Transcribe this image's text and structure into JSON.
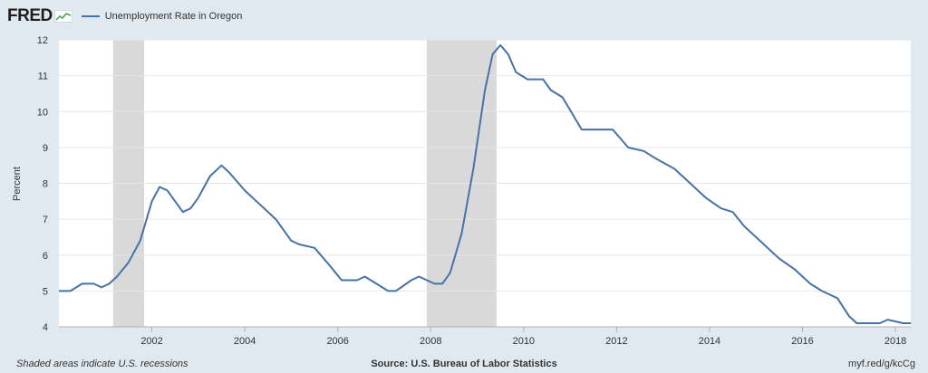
{
  "header": {
    "brand": "FRED",
    "brand_icon": "fred-sparkline-icon",
    "series_label": "Unemployment Rate in Oregon"
  },
  "footer": {
    "note": "Shaded areas indicate U.S. recessions",
    "source": "Source: U.S. Bureau of Labor Statistics",
    "link": "myf.red/g/kcCg"
  },
  "colors": {
    "line": "#4572a7",
    "recession": "#d9d9d9",
    "background": "#e1e9f0",
    "plot_background": "#ffffff",
    "grid": "#e6e6e6"
  },
  "chart_data": {
    "type": "line",
    "title": "",
    "xlabel": "",
    "ylabel": "Percent",
    "xlim": [
      2000.0,
      2018.33
    ],
    "ylim": [
      4,
      12
    ],
    "grid": true,
    "legend_position": "top-left",
    "x_ticks": [
      "2002",
      "2004",
      "2006",
      "2008",
      "2010",
      "2012",
      "2014",
      "2016",
      "2018"
    ],
    "y_ticks": [
      "4",
      "5",
      "6",
      "7",
      "8",
      "9",
      "10",
      "11",
      "12"
    ],
    "recessions": [
      {
        "start": "2001-03",
        "end": "2001-11"
      },
      {
        "start": "2007-12",
        "end": "2009-06"
      }
    ],
    "series": [
      {
        "points": [
          [
            "2000-01",
            5.0
          ],
          [
            "2000-04",
            5.0
          ],
          [
            "2000-07",
            5.2
          ],
          [
            "2000-10",
            5.2
          ],
          [
            "2000-12",
            5.1
          ],
          [
            "2001-02",
            5.2
          ],
          [
            "2001-04",
            5.4
          ],
          [
            "2001-07",
            5.8
          ],
          [
            "2001-10",
            6.4
          ],
          [
            "2002-01",
            7.5
          ],
          [
            "2002-03",
            7.9
          ],
          [
            "2002-05",
            7.8
          ],
          [
            "2002-07",
            7.5
          ],
          [
            "2002-09",
            7.2
          ],
          [
            "2002-11",
            7.3
          ],
          [
            "2003-01",
            7.6
          ],
          [
            "2003-04",
            8.2
          ],
          [
            "2003-07",
            8.5
          ],
          [
            "2003-09",
            8.3
          ],
          [
            "2004-01",
            7.8
          ],
          [
            "2004-06",
            7.3
          ],
          [
            "2004-09",
            7.0
          ],
          [
            "2005-01",
            6.4
          ],
          [
            "2005-03",
            6.3
          ],
          [
            "2005-07",
            6.2
          ],
          [
            "2005-11",
            5.7
          ],
          [
            "2006-02",
            5.3
          ],
          [
            "2006-06",
            5.3
          ],
          [
            "2006-08",
            5.4
          ],
          [
            "2006-11",
            5.2
          ],
          [
            "2007-02",
            5.0
          ],
          [
            "2007-04",
            5.0
          ],
          [
            "2007-08",
            5.3
          ],
          [
            "2007-10",
            5.4
          ],
          [
            "2007-12",
            5.3
          ],
          [
            "2008-02",
            5.2
          ],
          [
            "2008-04",
            5.2
          ],
          [
            "2008-06",
            5.5
          ],
          [
            "2008-09",
            6.6
          ],
          [
            "2008-12",
            8.4
          ],
          [
            "2009-03",
            10.6
          ],
          [
            "2009-05",
            11.6
          ],
          [
            "2009-07",
            11.85
          ],
          [
            "2009-09",
            11.6
          ],
          [
            "2009-11",
            11.1
          ],
          [
            "2010-02",
            10.9
          ],
          [
            "2010-06",
            10.9
          ],
          [
            "2010-08",
            10.6
          ],
          [
            "2010-11",
            10.4
          ],
          [
            "2011-04",
            9.5
          ],
          [
            "2011-12",
            9.5
          ],
          [
            "2012-04",
            9.0
          ],
          [
            "2012-08",
            8.9
          ],
          [
            "2012-11",
            8.7
          ],
          [
            "2013-04",
            8.4
          ],
          [
            "2013-07",
            8.1
          ],
          [
            "2013-12",
            7.6
          ],
          [
            "2014-04",
            7.3
          ],
          [
            "2014-07",
            7.2
          ],
          [
            "2014-10",
            6.8
          ],
          [
            "2015-02",
            6.4
          ],
          [
            "2015-07",
            5.9
          ],
          [
            "2015-11",
            5.6
          ],
          [
            "2016-03",
            5.2
          ],
          [
            "2016-06",
            5.0
          ],
          [
            "2016-10",
            4.8
          ],
          [
            "2017-01",
            4.3
          ],
          [
            "2017-03",
            4.1
          ],
          [
            "2017-09",
            4.1
          ],
          [
            "2017-11",
            4.2
          ],
          [
            "2018-03",
            4.1
          ],
          [
            "2018-05",
            4.1
          ]
        ]
      }
    ]
  }
}
